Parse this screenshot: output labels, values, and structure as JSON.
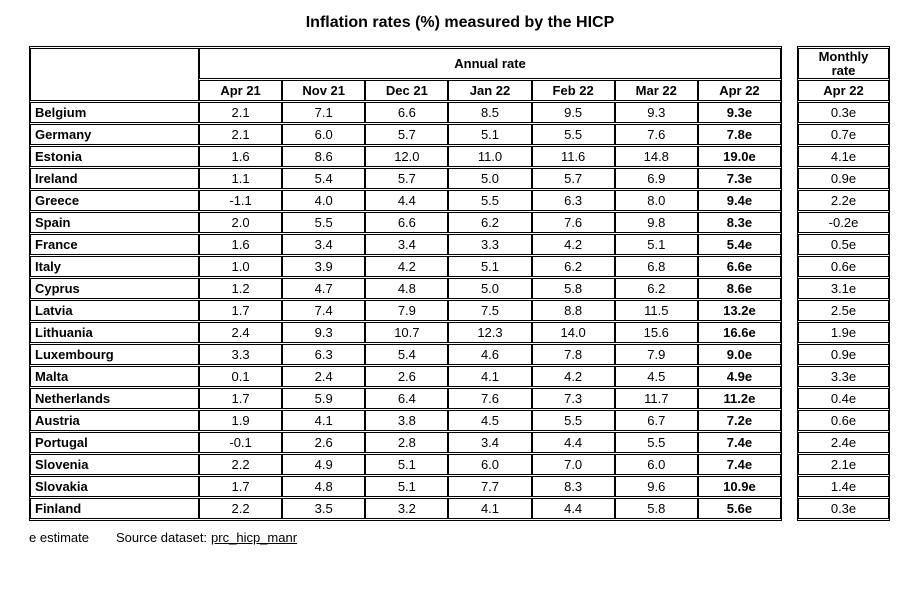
{
  "chart_data": {
    "type": "table",
    "title": "Inflation rates (%) measured by the HICP",
    "annual": {
      "group_header": "Annual rate",
      "columns": [
        "Apr 21",
        "Nov 21",
        "Dec 21",
        "Jan 22",
        "Feb 22",
        "Mar 22",
        "Apr 22"
      ],
      "rows": [
        {
          "country": "Belgium",
          "values": [
            "2.1",
            "7.1",
            "6.6",
            "8.5",
            "9.5",
            "9.3",
            "9.3e"
          ]
        },
        {
          "country": "Germany",
          "values": [
            "2.1",
            "6.0",
            "5.7",
            "5.1",
            "5.5",
            "7.6",
            "7.8e"
          ]
        },
        {
          "country": "Estonia",
          "values": [
            "1.6",
            "8.6",
            "12.0",
            "11.0",
            "11.6",
            "14.8",
            "19.0e"
          ]
        },
        {
          "country": "Ireland",
          "values": [
            "1.1",
            "5.4",
            "5.7",
            "5.0",
            "5.7",
            "6.9",
            "7.3e"
          ]
        },
        {
          "country": "Greece",
          "values": [
            "-1.1",
            "4.0",
            "4.4",
            "5.5",
            "6.3",
            "8.0",
            "9.4e"
          ]
        },
        {
          "country": "Spain",
          "values": [
            "2.0",
            "5.5",
            "6.6",
            "6.2",
            "7.6",
            "9.8",
            "8.3e"
          ]
        },
        {
          "country": "France",
          "values": [
            "1.6",
            "3.4",
            "3.4",
            "3.3",
            "4.2",
            "5.1",
            "5.4e"
          ]
        },
        {
          "country": "Italy",
          "values": [
            "1.0",
            "3.9",
            "4.2",
            "5.1",
            "6.2",
            "6.8",
            "6.6e"
          ]
        },
        {
          "country": "Cyprus",
          "values": [
            "1.2",
            "4.7",
            "4.8",
            "5.0",
            "5.8",
            "6.2",
            "8.6e"
          ]
        },
        {
          "country": "Latvia",
          "values": [
            "1.7",
            "7.4",
            "7.9",
            "7.5",
            "8.8",
            "11.5",
            "13.2e"
          ]
        },
        {
          "country": "Lithuania",
          "values": [
            "2.4",
            "9.3",
            "10.7",
            "12.3",
            "14.0",
            "15.6",
            "16.6e"
          ]
        },
        {
          "country": "Luxembourg",
          "values": [
            "3.3",
            "6.3",
            "5.4",
            "4.6",
            "7.8",
            "7.9",
            "9.0e"
          ]
        },
        {
          "country": "Malta",
          "values": [
            "0.1",
            "2.4",
            "2.6",
            "4.1",
            "4.2",
            "4.5",
            "4.9e"
          ]
        },
        {
          "country": "Netherlands",
          "values": [
            "1.7",
            "5.9",
            "6.4",
            "7.6",
            "7.3",
            "11.7",
            "11.2e"
          ]
        },
        {
          "country": "Austria",
          "values": [
            "1.9",
            "4.1",
            "3.8",
            "4.5",
            "5.5",
            "6.7",
            "7.2e"
          ]
        },
        {
          "country": "Portugal",
          "values": [
            "-0.1",
            "2.6",
            "2.8",
            "3.4",
            "4.4",
            "5.5",
            "7.4e"
          ]
        },
        {
          "country": "Slovenia",
          "values": [
            "2.2",
            "4.9",
            "5.1",
            "6.0",
            "7.0",
            "6.0",
            "7.4e"
          ]
        },
        {
          "country": "Slovakia",
          "values": [
            "1.7",
            "4.8",
            "5.1",
            "7.7",
            "8.3",
            "9.6",
            "10.9e"
          ]
        },
        {
          "country": "Finland",
          "values": [
            "2.2",
            "3.5",
            "3.2",
            "4.1",
            "4.4",
            "5.8",
            "5.6e"
          ]
        }
      ]
    },
    "monthly": {
      "group_header": "Monthly rate",
      "column": "Apr 22",
      "values": [
        "0.3e",
        "0.7e",
        "4.1e",
        "0.9e",
        "2.2e",
        "-0.2e",
        "0.5e",
        "0.6e",
        "3.1e",
        "2.5e",
        "1.9e",
        "0.9e",
        "3.3e",
        "0.4e",
        "0.6e",
        "2.4e",
        "2.1e",
        "1.4e",
        "0.3e"
      ]
    },
    "footnote": "e estimate",
    "source_label": "Source dataset:",
    "source_link": "prc_hicp_manr"
  }
}
